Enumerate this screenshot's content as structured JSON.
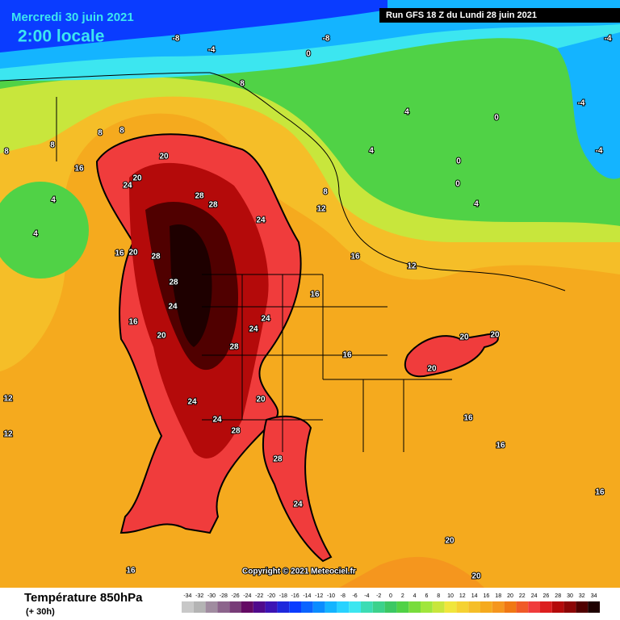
{
  "header": {
    "date": "Mercredi 30 juin 2021",
    "time": "2:00 locale",
    "run": "Run GFS 18 Z du Lundi 28 juin 2021"
  },
  "footer": {
    "title": "Température 850hPa",
    "lead": "(+ 30h)",
    "copyright": "Copyright © 2021 Meteociel.fr"
  },
  "contour_labels": [
    -8,
    -8,
    -4,
    0,
    -4,
    -4,
    -4,
    0,
    0,
    0,
    4,
    4,
    4,
    4,
    4,
    8,
    8,
    8,
    8,
    8,
    8,
    12,
    12,
    16,
    16,
    16,
    16,
    16,
    16,
    20,
    20,
    20,
    20,
    24,
    24,
    24,
    24,
    24,
    28,
    28,
    28,
    28,
    28,
    28,
    24,
    20,
    20,
    20,
    12,
    12,
    16,
    16,
    20,
    16,
    20,
    16,
    24,
    28,
    24,
    20
  ],
  "scale": {
    "values": [
      -34,
      -32,
      -30,
      -28,
      -26,
      -24,
      -22,
      -20,
      -18,
      -16,
      -14,
      -12,
      -10,
      -8,
      -6,
      -4,
      -2,
      0,
      2,
      4,
      6,
      8,
      10,
      12,
      14,
      16,
      18,
      20,
      22,
      24,
      26,
      28,
      30,
      32,
      34
    ],
    "colors": [
      "#c8c8c8",
      "#b4b4b4",
      "#a08ca0",
      "#8c648c",
      "#783c78",
      "#640a64",
      "#500a8c",
      "#3c14b4",
      "#1e28dc",
      "#0a3cff",
      "#0a64ff",
      "#0a8cff",
      "#14b4ff",
      "#28d2ff",
      "#3ce6f0",
      "#3cdcb4",
      "#3cd28c",
      "#3cc864",
      "#50d246",
      "#78dc3c",
      "#a0e63c",
      "#c8e63c",
      "#f0e63c",
      "#f5d232",
      "#f5be28",
      "#f5aa1e",
      "#f5961e",
      "#f07814",
      "#f05a28",
      "#f03c3c",
      "#dc1e1e",
      "#b40a0a",
      "#8c0505",
      "#500000",
      "#1e0000"
    ]
  }
}
